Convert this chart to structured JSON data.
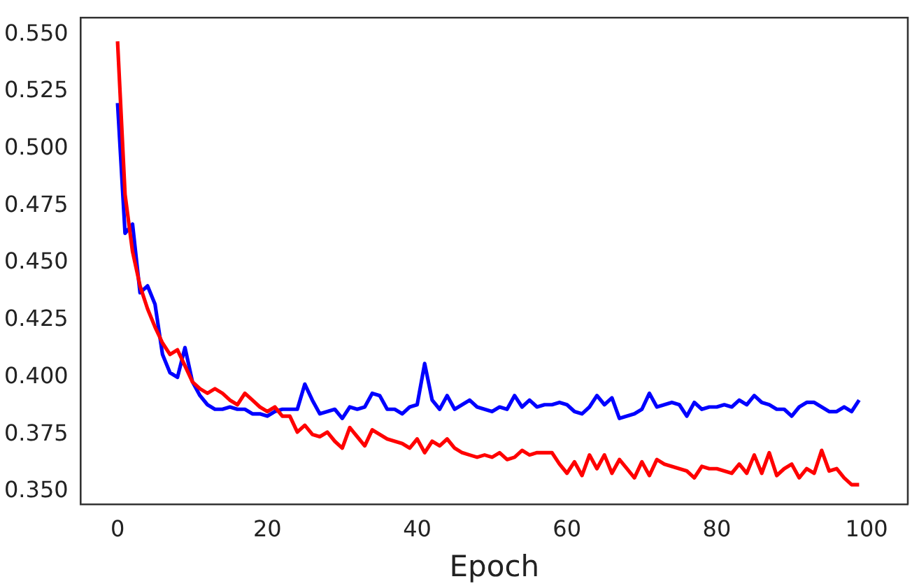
{
  "chart_data": {
    "type": "line",
    "xlabel": "Epoch",
    "x": [
      0,
      1,
      2,
      3,
      4,
      5,
      6,
      7,
      8,
      9,
      10,
      11,
      12,
      13,
      14,
      15,
      16,
      17,
      18,
      19,
      20,
      21,
      22,
      23,
      24,
      25,
      26,
      27,
      28,
      29,
      30,
      31,
      32,
      33,
      34,
      35,
      36,
      37,
      38,
      39,
      40,
      41,
      42,
      43,
      44,
      45,
      46,
      47,
      48,
      49,
      50,
      51,
      52,
      53,
      54,
      55,
      56,
      57,
      58,
      59,
      60,
      61,
      62,
      63,
      64,
      65,
      66,
      67,
      68,
      69,
      70,
      71,
      72,
      73,
      74,
      75,
      76,
      77,
      78,
      79,
      80,
      81,
      82,
      83,
      84,
      85,
      86,
      87,
      88,
      89,
      90,
      91,
      92,
      93,
      94,
      95,
      96,
      97,
      98,
      99
    ],
    "series": [
      {
        "color": "#ff0000",
        "values": [
          0.547,
          0.48,
          0.455,
          0.44,
          0.43,
          0.422,
          0.415,
          0.41,
          0.412,
          0.405,
          0.398,
          0.395,
          0.393,
          0.395,
          0.393,
          0.39,
          0.388,
          0.393,
          0.39,
          0.387,
          0.385,
          0.387,
          0.383,
          0.383,
          0.376,
          0.379,
          0.375,
          0.374,
          0.376,
          0.372,
          0.369,
          0.378,
          0.374,
          0.37,
          0.377,
          0.375,
          0.373,
          0.372,
          0.371,
          0.369,
          0.373,
          0.367,
          0.372,
          0.37,
          0.373,
          0.369,
          0.367,
          0.366,
          0.365,
          0.366,
          0.365,
          0.367,
          0.364,
          0.365,
          0.368,
          0.366,
          0.367,
          0.367,
          0.367,
          0.362,
          0.358,
          0.363,
          0.357,
          0.366,
          0.36,
          0.366,
          0.358,
          0.364,
          0.36,
          0.356,
          0.363,
          0.357,
          0.364,
          0.362,
          0.361,
          0.36,
          0.359,
          0.356,
          0.361,
          0.36,
          0.36,
          0.359,
          0.358,
          0.362,
          0.358,
          0.366,
          0.358,
          0.367,
          0.357,
          0.36,
          0.362,
          0.356,
          0.36,
          0.358,
          0.368,
          0.359,
          0.36,
          0.356,
          0.353,
          0.353
        ]
      },
      {
        "color": "#0000ff",
        "values": [
          0.52,
          0.463,
          0.467,
          0.437,
          0.44,
          0.432,
          0.41,
          0.402,
          0.4,
          0.413,
          0.398,
          0.392,
          0.388,
          0.386,
          0.386,
          0.387,
          0.386,
          0.386,
          0.384,
          0.384,
          0.383,
          0.385,
          0.386,
          0.386,
          0.386,
          0.397,
          0.39,
          0.384,
          0.385,
          0.386,
          0.382,
          0.387,
          0.386,
          0.387,
          0.393,
          0.392,
          0.386,
          0.386,
          0.384,
          0.387,
          0.388,
          0.406,
          0.39,
          0.386,
          0.392,
          0.386,
          0.388,
          0.39,
          0.387,
          0.386,
          0.385,
          0.387,
          0.386,
          0.392,
          0.387,
          0.39,
          0.387,
          0.388,
          0.388,
          0.389,
          0.388,
          0.385,
          0.384,
          0.387,
          0.392,
          0.388,
          0.391,
          0.382,
          0.383,
          0.384,
          0.386,
          0.393,
          0.387,
          0.388,
          0.389,
          0.388,
          0.383,
          0.389,
          0.386,
          0.387,
          0.387,
          0.388,
          0.387,
          0.39,
          0.388,
          0.392,
          0.389,
          0.388,
          0.386,
          0.386,
          0.383,
          0.387,
          0.389,
          0.389,
          0.387,
          0.385,
          0.385,
          0.387,
          0.385,
          0.39
        ]
      }
    ],
    "xlim": [
      -4.9,
      105.5
    ],
    "ylim": [
      0.3444,
      0.5574
    ],
    "xticks": [
      0,
      20,
      40,
      60,
      80,
      100
    ],
    "yticks": [
      {
        "value": 0.35,
        "label": "0.350"
      },
      {
        "value": 0.375,
        "label": "0.375"
      },
      {
        "value": 0.4,
        "label": "0.400"
      },
      {
        "value": 0.425,
        "label": "0.425"
      },
      {
        "value": 0.45,
        "label": "0.450"
      },
      {
        "value": 0.475,
        "label": "0.475"
      },
      {
        "value": 0.5,
        "label": "0.500"
      },
      {
        "value": 0.525,
        "label": "0.525"
      },
      {
        "value": 0.55,
        "label": "0.550"
      }
    ],
    "grid": false,
    "legend": false,
    "marker": "none",
    "line_style": "solid"
  }
}
